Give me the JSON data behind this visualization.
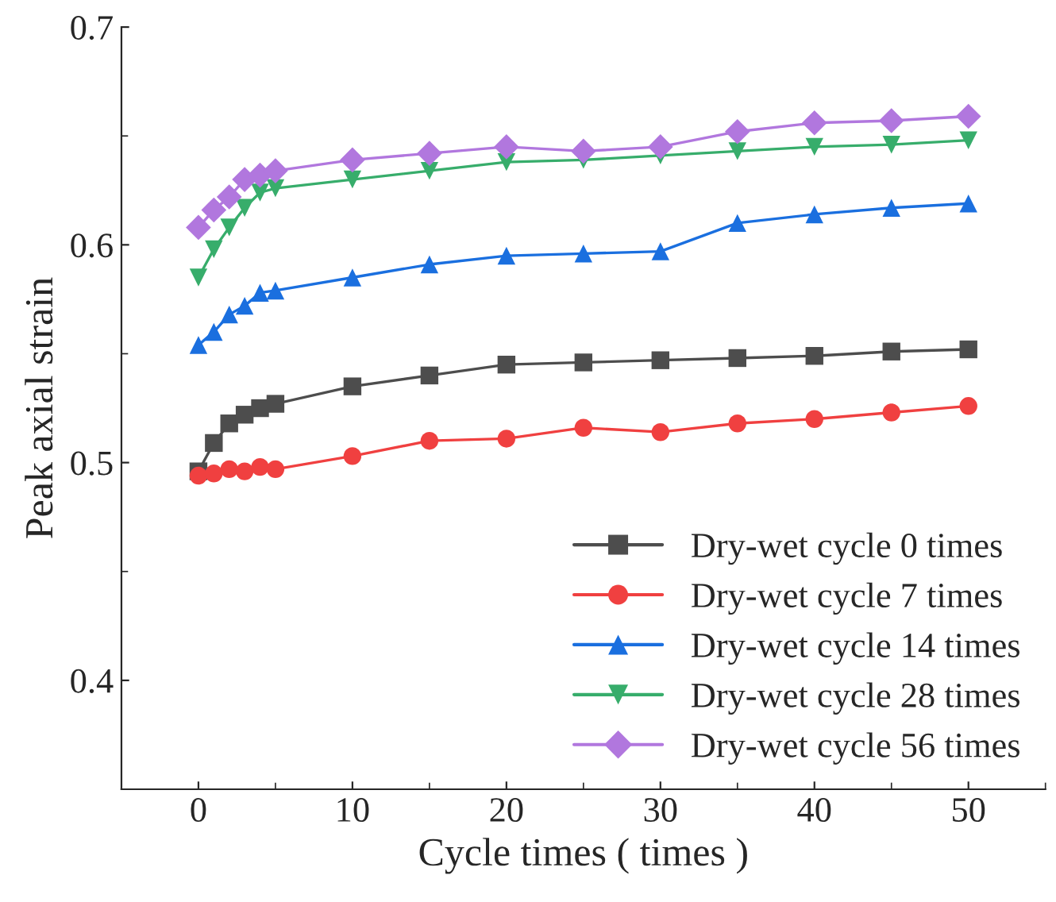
{
  "chart_data": {
    "type": "line",
    "xlabel": "Cycle times ( times )",
    "ylabel": "Peak axial strain",
    "x": [
      0,
      1,
      2,
      3,
      4,
      5,
      10,
      15,
      20,
      25,
      30,
      35,
      40,
      45,
      50
    ],
    "series": [
      {
        "name": "Dry-wet cycle 0 times",
        "color": "#4d4d4d",
        "marker": "square",
        "values": [
          0.496,
          0.509,
          0.518,
          0.522,
          0.525,
          0.527,
          0.535,
          0.54,
          0.545,
          0.546,
          0.547,
          0.548,
          0.549,
          0.551,
          0.552
        ]
      },
      {
        "name": "Dry-wet cycle 7 times",
        "color": "#f04040",
        "marker": "circle",
        "values": [
          0.494,
          0.495,
          0.497,
          0.496,
          0.498,
          0.497,
          0.503,
          0.51,
          0.511,
          0.516,
          0.514,
          0.518,
          0.52,
          0.523,
          0.526
        ]
      },
      {
        "name": "Dry-wet cycle 14 times",
        "color": "#1a6fdf",
        "marker": "triangle",
        "values": [
          0.554,
          0.56,
          0.568,
          0.572,
          0.578,
          0.579,
          0.585,
          0.591,
          0.595,
          0.596,
          0.597,
          0.61,
          0.614,
          0.617,
          0.619
        ]
      },
      {
        "name": "Dry-wet cycle 28 times",
        "color": "#37ad6b",
        "marker": "triangle_down",
        "values": [
          0.585,
          0.598,
          0.608,
          0.617,
          0.624,
          0.626,
          0.63,
          0.634,
          0.638,
          0.639,
          0.641,
          0.643,
          0.645,
          0.646,
          0.648
        ]
      },
      {
        "name": "Dry-wet cycle 56 times",
        "color": "#b177de",
        "marker": "diamond",
        "values": [
          0.608,
          0.616,
          0.622,
          0.63,
          0.632,
          0.634,
          0.639,
          0.642,
          0.645,
          0.643,
          0.645,
          0.652,
          0.656,
          0.657,
          0.659
        ]
      }
    ],
    "xlim": [
      -5,
      55
    ],
    "xticks": [
      0,
      10,
      20,
      30,
      40,
      50
    ],
    "ylim": [
      0.35,
      0.7
    ],
    "yticks": [
      0.4,
      0.5,
      0.6,
      0.7
    ],
    "legend": "bottom right",
    "grid": false,
    "line_style": "solid"
  }
}
